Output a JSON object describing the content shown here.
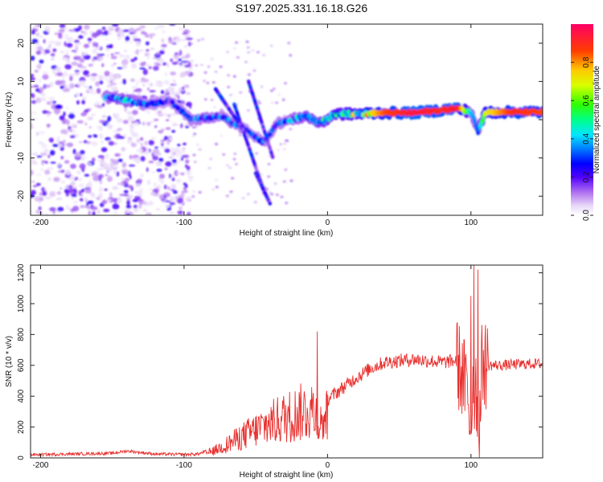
{
  "title": "S197.2025.331.16.18.G26",
  "chart_data": [
    {
      "type": "heatmap",
      "title": "S197.2025.331.16.18.G26",
      "xlabel": "Height of straight line (km)",
      "ylabel": "Frequency (Hz)",
      "xlim": [
        -207,
        150
      ],
      "ylim": [
        -25,
        25
      ],
      "xticks": [
        -200,
        -100,
        0,
        100
      ],
      "yticks": [
        20,
        10,
        0,
        -10,
        -20
      ],
      "colorbar": {
        "label": "Normalized spectral amplitude",
        "range": [
          0.0,
          1.0
        ],
        "ticks": [
          0.0,
          0.2,
          0.4,
          0.6,
          0.8
        ],
        "colormap": [
          "#ffffff",
          "#d9c2f2",
          "#8a2be2",
          "#3a00ff",
          "#0000ff",
          "#00aaff",
          "#00ffff",
          "#00ff66",
          "#66ff00",
          "#ffff00",
          "#ffaa00",
          "#ff3300",
          "#ff0066"
        ]
      },
      "ridge": {
        "description": "Dominant frequency ridge vs height",
        "x": [
          -155,
          -140,
          -125,
          -110,
          -95,
          -85,
          -75,
          -65,
          -55,
          -45,
          -35,
          -25,
          -15,
          -5,
          5,
          20,
          40,
          60,
          80,
          90,
          100,
          105,
          110,
          130,
          150
        ],
        "y": [
          6,
          5,
          4,
          5,
          0,
          0.5,
          1,
          -1,
          -3,
          -6,
          -1,
          0,
          1,
          -1,
          1.5,
          1.5,
          1.8,
          1.8,
          2.5,
          3,
          2,
          -3,
          2,
          2,
          2
        ],
        "amplitude": [
          0.35,
          0.4,
          0.3,
          0.25,
          0.3,
          0.35,
          0.3,
          0.35,
          0.25,
          0.3,
          0.3,
          0.35,
          0.4,
          0.45,
          0.5,
          0.6,
          0.85,
          0.95,
          0.9,
          0.95,
          0.4,
          0.3,
          0.7,
          0.9,
          0.85
        ]
      }
    },
    {
      "type": "line",
      "xlabel": "Height of straight line (km)",
      "ylabel": "SNR (10 * v/v)",
      "xlim": [
        -207,
        150
      ],
      "ylim": [
        0,
        1250
      ],
      "xticks": [
        -200,
        -100,
        0,
        100
      ],
      "yticks": [
        0,
        200,
        400,
        600,
        800,
        1000,
        1200
      ],
      "color": "#e8302e",
      "series": [
        {
          "name": "SNR",
          "envelope_x": [
            -207,
            -180,
            -150,
            -140,
            -120,
            -100,
            -90,
            -80,
            -70,
            -60,
            -50,
            -40,
            -30,
            -20,
            -10,
            -5,
            0,
            10,
            20,
            30,
            40,
            60,
            80,
            90,
            95,
            98,
            100,
            102,
            104,
            106,
            108,
            110,
            120,
            140,
            150
          ],
          "envelope_y": [
            20,
            25,
            30,
            45,
            25,
            22,
            25,
            60,
            120,
            190,
            250,
            310,
            360,
            400,
            440,
            300,
            380,
            450,
            520,
            580,
            620,
            640,
            620,
            630,
            500,
            400,
            150,
            700,
            380,
            200,
            650,
            600,
            600,
            610,
            610
          ],
          "spikes": [
            {
              "x": -7,
              "y": 820
            },
            {
              "x": 100,
              "y": 1050
            },
            {
              "x": 102,
              "y": 1250
            },
            {
              "x": 105,
              "y": 1220
            }
          ]
        }
      ]
    }
  ]
}
